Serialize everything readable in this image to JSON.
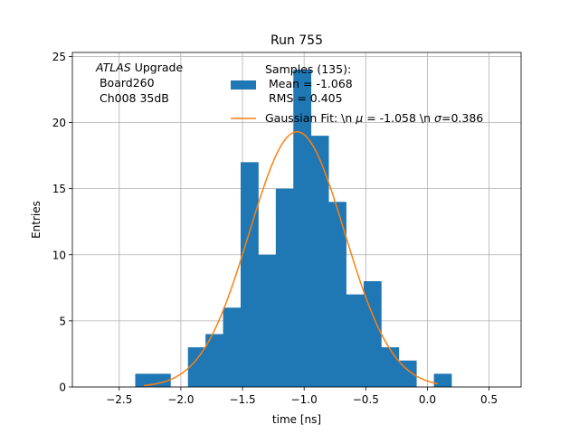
{
  "chart_data": {
    "type": "bar",
    "title": "Run 755",
    "xlabel": "time [ns]",
    "ylabel": "Entries",
    "xlim": [
      -2.88,
      0.76
    ],
    "ylim": [
      0,
      25.3
    ],
    "grid": true,
    "xticks": [
      -2.5,
      -2.0,
      -1.5,
      -1.0,
      -0.5,
      0.0,
      0.5
    ],
    "xtick_labels": [
      "−2.5",
      "−2.0",
      "−1.5",
      "−1.0",
      "−0.5",
      "0.0",
      "0.5"
    ],
    "yticks": [
      0,
      5,
      10,
      15,
      20,
      25
    ],
    "ytick_labels": [
      "0",
      "5",
      "10",
      "15",
      "20",
      "25"
    ],
    "histogram": {
      "name": "Samples (135):\n Mean = -1.068\n RMS = 0.405",
      "color": "#1f77b4",
      "bin_width": 0.1425,
      "bins": [
        {
          "x0": -2.37,
          "count": 1
        },
        {
          "x0": -2.2275,
          "count": 1
        },
        {
          "x0": -1.9425,
          "count": 3
        },
        {
          "x0": -1.8,
          "count": 4
        },
        {
          "x0": -1.6575,
          "count": 6
        },
        {
          "x0": -1.515,
          "count": 17
        },
        {
          "x0": -1.3725,
          "count": 10
        },
        {
          "x0": -1.23,
          "count": 15
        },
        {
          "x0": -1.0875,
          "count": 24
        },
        {
          "x0": -0.945,
          "count": 19
        },
        {
          "x0": -0.8025,
          "count": 14
        },
        {
          "x0": -0.66,
          "count": 7
        },
        {
          "x0": -0.5175,
          "count": 8
        },
        {
          "x0": -0.375,
          "count": 3
        },
        {
          "x0": -0.2325,
          "count": 2
        },
        {
          "x0": 0.0525,
          "count": 1
        }
      ]
    },
    "fit": {
      "name": "Gaussian Fit: \\n μ = -1.058 \\n σ=0.386",
      "color": "#ff7f0e",
      "mu": -1.058,
      "sigma": 0.386,
      "amplitude": 19.3,
      "x_range": [
        -2.3,
        0.08
      ]
    },
    "annotation": {
      "italic": "ATLAS",
      "rest": " Upgrade",
      "line2": " Board260",
      "line3": " Ch008 35dB"
    },
    "legend": {
      "placement": "top-right",
      "hist_lines": [
        "Samples (135):",
        " Mean = -1.068",
        " RMS = 0.405"
      ],
      "fit_label_prefix": "Gaussian Fit: \\n ",
      "mu_symbol": "μ",
      "mu_value": " = -1.058 \\n ",
      "sigma_symbol": "σ",
      "sigma_value": "=0.386"
    }
  }
}
